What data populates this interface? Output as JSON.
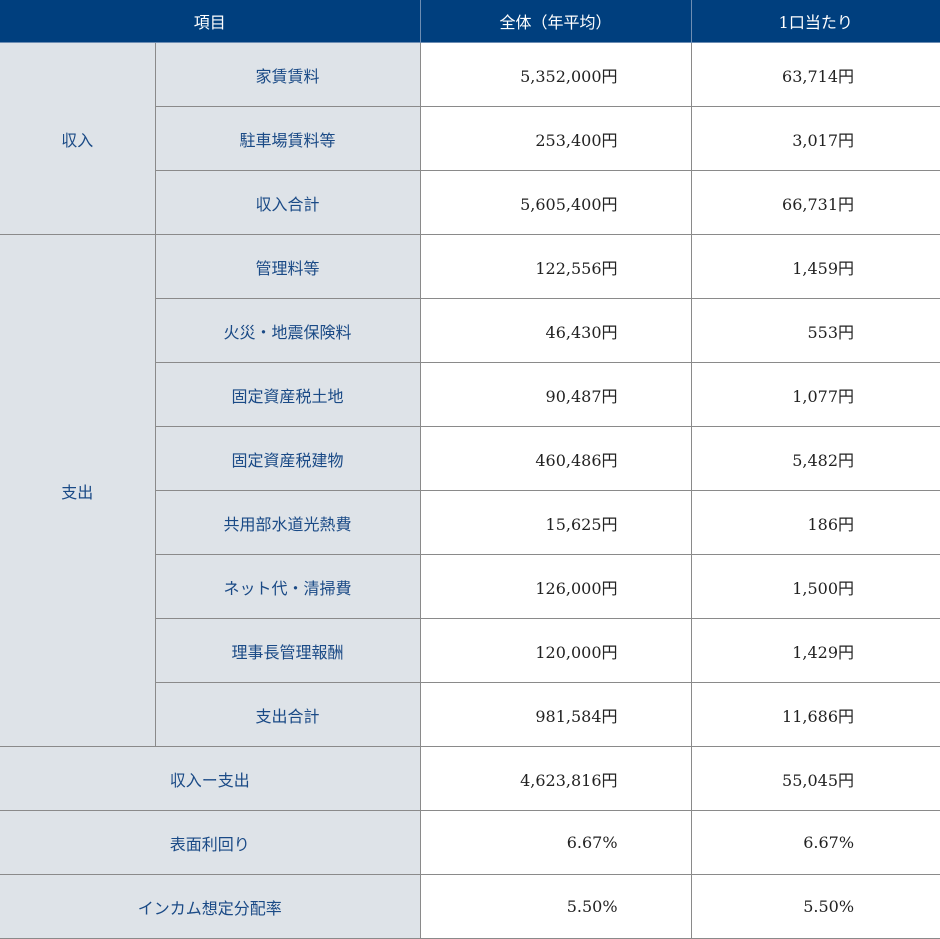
{
  "header": {
    "item": "項目",
    "total": "全体（年平均）",
    "per_unit": "1口当たり"
  },
  "groups": [
    {
      "label": "収入",
      "rows": [
        {
          "item": "家賃賃料",
          "total": "5,352,000円",
          "per_unit": "63,714円"
        },
        {
          "item": "駐車場賃料等",
          "total": "253,400円",
          "per_unit": "3,017円"
        },
        {
          "item": "収入合計",
          "total": "5,605,400円",
          "per_unit": "66,731円"
        }
      ]
    },
    {
      "label": "支出",
      "rows": [
        {
          "item": "管理料等",
          "total": "122,556円",
          "per_unit": "1,459円"
        },
        {
          "item": "火災・地震保険料",
          "total": "46,430円",
          "per_unit": "553円"
        },
        {
          "item": "固定資産税土地",
          "total": "90,487円",
          "per_unit": "1,077円"
        },
        {
          "item": "固定資産税建物",
          "total": "460,486円",
          "per_unit": "5,482円"
        },
        {
          "item": "共用部水道光熱費",
          "total": "15,625円",
          "per_unit": "186円"
        },
        {
          "item": "ネット代・清掃費",
          "total": "126,000円",
          "per_unit": "1,500円"
        },
        {
          "item": "理事長管理報酬",
          "total": "120,000円",
          "per_unit": "1,429円"
        },
        {
          "item": "支出合計",
          "total": "981,584円",
          "per_unit": "11,686円"
        }
      ]
    }
  ],
  "summary": [
    {
      "item": "収入ー支出",
      "total": "4,623,816円",
      "per_unit": "55,045円"
    },
    {
      "item": "表面利回り",
      "total": "6.67%",
      "per_unit": "6.67%"
    },
    {
      "item": "インカム想定分配率",
      "total": "5.50%",
      "per_unit": "5.50%"
    }
  ]
}
